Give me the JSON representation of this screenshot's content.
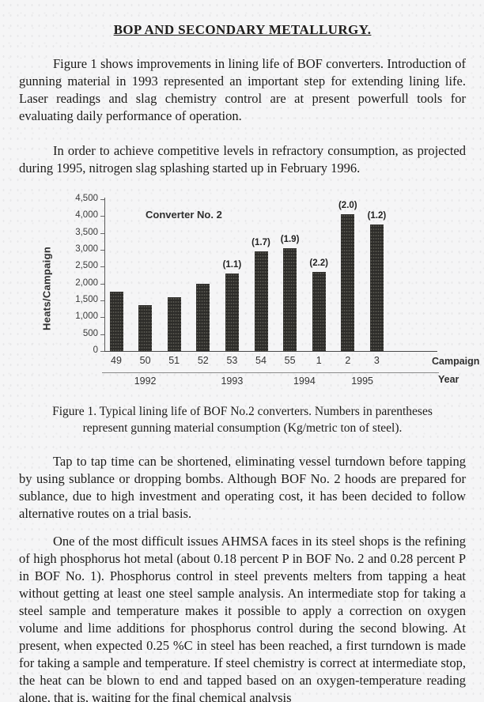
{
  "doc": {
    "title": "BOP AND SECONDARY METALLURGY.",
    "paragraphs": [
      "Figure 1 shows improvements in lining life of BOF converters. Introduction of gunning material in 1993 represented an important step for extending lining life. Laser readings and slag chemistry control are at present powerfull tools for evaluating daily performance of operation.",
      "In order to achieve competitive levels in refractory consumption, as projected during 1995, nitrogen slag splashing started up in February 1996.",
      "Tap to tap time can be shortened, eliminating vessel turndown before tapping by using sublance or dropping bombs. Although BOF No. 2 hoods are prepared for sublance, due to high investment and operating cost, it has been decided to follow alternative routes on a trial basis.",
      "One of the most difficult issues AHMSA faces in its steel shops is the refining of high phosphorus hot metal (about 0.18 percent P in BOF No. 2 and 0.28 percent P in BOF No. 1). Phosphorus control in steel prevents melters from tapping a heat without getting at least one steel sample analysis. An intermediate stop for taking a steel sample and temperature makes it possible to apply a correction on oxygen volume and lime additions for phosphorus control during the second blowing. At present, when expected 0.25 %C in steel has been reached, a first turndown is made for taking a sample and temperature. If steel chemistry is correct at intermediate stop, the heat can be blown to end and tapped based on an oxygen-temperature reading alone, that is, waiting for the final chemical analysis"
    ],
    "caption_line1": "Figure 1. Typical lining life of BOF No.2 converters. Numbers in parentheses",
    "caption_line2": "represent gunning material consumption (Kg/metric ton of steel)."
  },
  "chart_data": {
    "type": "bar",
    "title": "Converter No. 2",
    "ylabel": "Heats/Campaign",
    "xlabel_line1": "Campaign",
    "xlabel_line2": "Year",
    "categories": [
      "49",
      "50",
      "51",
      "52",
      "53",
      "54",
      "55",
      "1",
      "2",
      "3"
    ],
    "values": [
      1750,
      1350,
      1600,
      2000,
      2300,
      2950,
      3050,
      2350,
      4050,
      3750
    ],
    "bar_labels": [
      "",
      "",
      "",
      "",
      "(1.1)",
      "(1.7)",
      "(1.9)",
      "(2.2)",
      "(2.0)",
      "(1.2)"
    ],
    "year_groups": [
      {
        "label": "1992",
        "span": [
          0,
          2
        ]
      },
      {
        "label": "1993",
        "span": [
          3,
          5
        ]
      },
      {
        "label": "1994",
        "span": [
          6,
          7
        ]
      },
      {
        "label": "1995",
        "span": [
          8,
          9
        ]
      }
    ],
    "y_ticks": [
      "4,500",
      "4,000",
      "3,500",
      "3,000",
      "2,500",
      "2,000",
      "1,500",
      "1,000",
      "500",
      "0"
    ],
    "y_tick_values": [
      4500,
      4000,
      3500,
      3000,
      2500,
      2000,
      1500,
      1000,
      500,
      0
    ],
    "ylim": [
      0,
      4500
    ],
    "grid": false,
    "legend": "none",
    "bar_color": "#2d2c29"
  }
}
